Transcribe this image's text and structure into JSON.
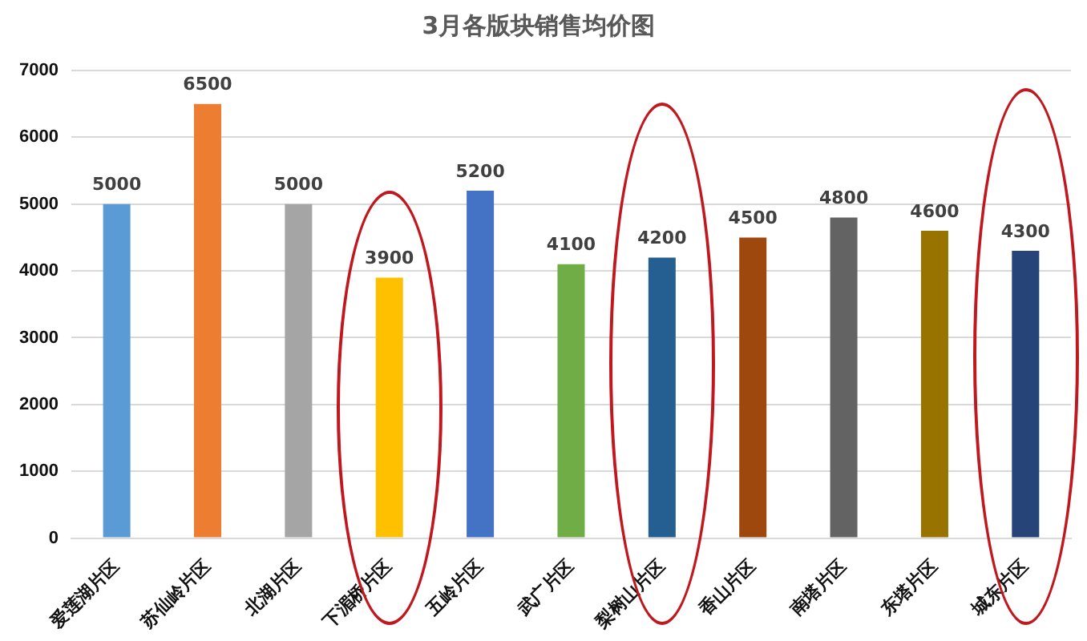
{
  "chart_data": {
    "type": "bar",
    "title": "3月各版块销售均价图",
    "categories": [
      "爱莲湖片区",
      "苏仙岭片区",
      "北湖片区",
      "下湄桥片区",
      "五岭片区",
      "武广片区",
      "梨树山片区",
      "香山片区",
      "南塔片区",
      "东塔片区",
      "城东片区"
    ],
    "values": [
      5000,
      6500,
      5000,
      3900,
      5200,
      4100,
      4200,
      4500,
      4800,
      4600,
      4300
    ],
    "colors": [
      "#5b9bd5",
      "#ed7d31",
      "#a5a5a5",
      "#ffc000",
      "#4472c4",
      "#70ad47",
      "#255e91",
      "#9e480e",
      "#636363",
      "#997300",
      "#264478"
    ],
    "ylim": [
      0,
      7000
    ],
    "yticks": [
      0,
      1000,
      2000,
      3000,
      4000,
      5000,
      6000,
      7000
    ],
    "grid": "y",
    "data_labels": true
  }
}
